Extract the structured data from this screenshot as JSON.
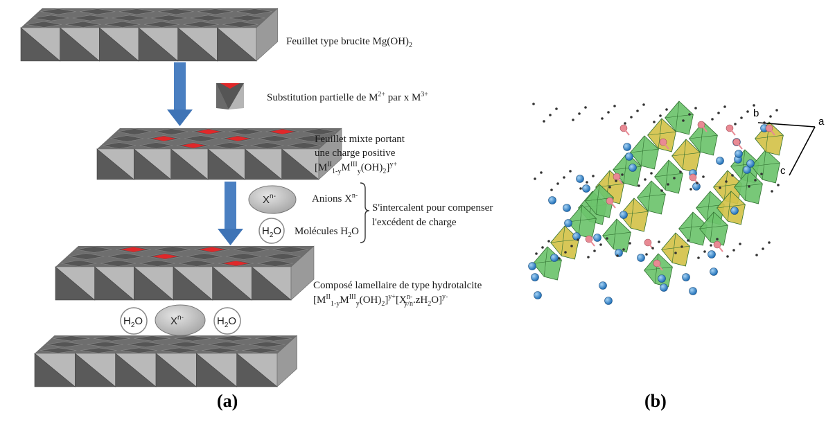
{
  "panel_a": {
    "layer1": {
      "text": "Feuillet type brucite Mg(OH)",
      "sub": "2"
    },
    "substitution": {
      "text": "Substitution partielle de M",
      "sup1": "2+",
      "mid": " par x M",
      "sup2": "3+"
    },
    "mixed": {
      "line1": "Feuillet mixte portant",
      "line2": "une charge positive",
      "f_a": "[M",
      "f_sup1": "II",
      "f_sub1": "1-y",
      "f_b": "M",
      "f_sup2": "III",
      "f_sub2": "y",
      "f_c": "(OH)",
      "f_sub3": "2",
      "f_d": "]",
      "f_sup3": "y+"
    },
    "anion_oval": {
      "text": "X",
      "sup": "n-"
    },
    "anions_label": {
      "text": "Anions X",
      "sup": "n-"
    },
    "water_circle": {
      "text": "H",
      "sub": "2",
      "tail": "O"
    },
    "water_label": {
      "text": "Molécules H",
      "sub": "2",
      "tail": "O"
    },
    "bracket_line1": "S'intercalent pour compenser",
    "bracket_line2": "l'excédent de charge",
    "final": {
      "line1": "Composé lamellaire de type hydrotalcite",
      "f_a": "[M",
      "f_sup1": "II",
      "f_sub1": "1-y",
      "f_b": "M",
      "f_sup2": "III",
      "f_sub2": "y",
      "f_c": "(OH)",
      "f_sub3": "2",
      "f_d": "]",
      "f_sup3": "y+",
      "f_e": "[X",
      "f_sup4": "n-",
      "f_sub4": "y/n",
      "f_f": ".zH",
      "f_sub5": "2",
      "f_g": "O]",
      "f_sup5": "y-"
    },
    "interlayer": {
      "water": "H",
      "water_sub": "2",
      "water_tail": "O",
      "anion": "X",
      "anion_sup": "n-"
    },
    "caption": "(a)"
  },
  "panel_b": {
    "axes": {
      "a": "a",
      "b": "b",
      "c": "c"
    },
    "caption": "(b)"
  },
  "colors": {
    "dark_face": "#5a5a5a",
    "light_face": "#b9b9b9",
    "red_site": "#e0282a",
    "arrow": "#4a7fc1",
    "oval": "#bdbdbd",
    "green": "#6cc36c",
    "yellow": "#d4c24a",
    "pink": "#e98a94",
    "blue_atom": "#3e8fd6"
  }
}
